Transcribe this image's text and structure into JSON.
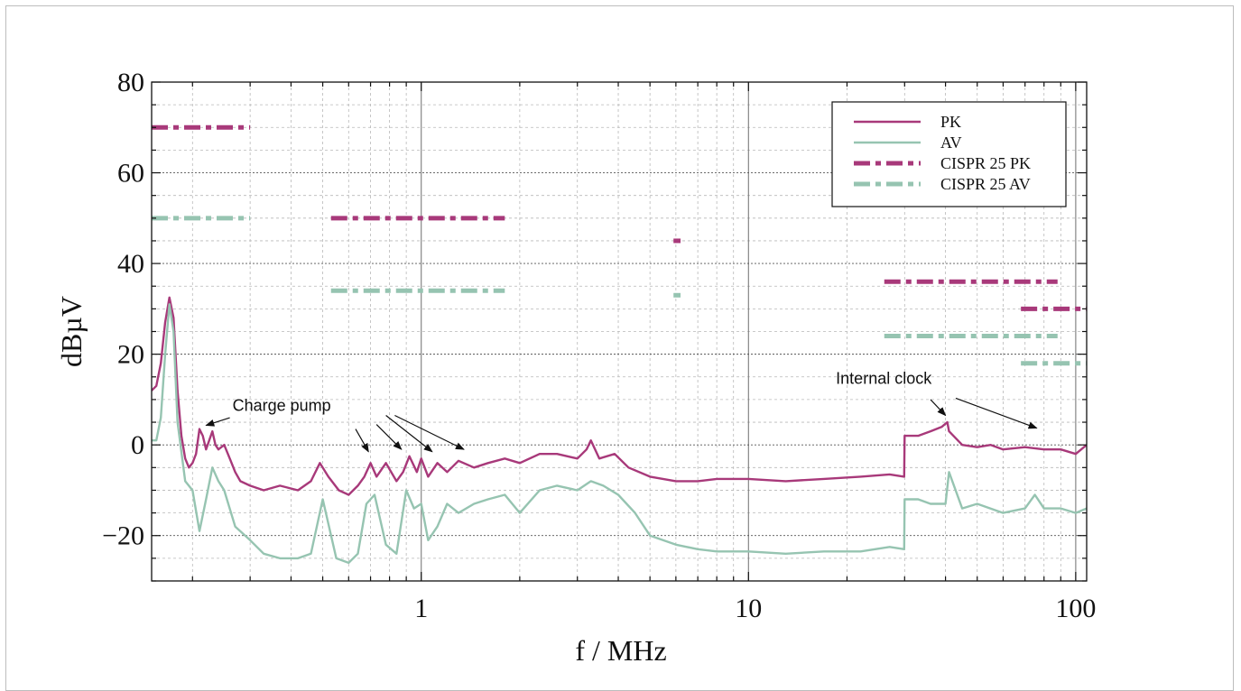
{
  "chart_data": {
    "type": "line",
    "xlabel": "f / MHz",
    "ylabel": "dBµV",
    "xscale": "log",
    "xlim": [
      0.15,
      108
    ],
    "ylim": [
      -30,
      80
    ],
    "x_ticks": [
      {
        "v": 1,
        "label": "1"
      },
      {
        "v": 10,
        "label": "10"
      },
      {
        "v": 100,
        "label": "100"
      }
    ],
    "y_ticks": [
      {
        "v": -20,
        "label": "−20"
      },
      {
        "v": 0,
        "label": "0"
      },
      {
        "v": 20,
        "label": "20"
      },
      {
        "v": 40,
        "label": "40"
      },
      {
        "v": 60,
        "label": "60"
      },
      {
        "v": 80,
        "label": "80"
      }
    ],
    "grid": true,
    "legend_position": "top-right",
    "colors": {
      "pk": "#a8397a",
      "av": "#96c4b1"
    },
    "series": [
      {
        "name": "PK",
        "key": "pk",
        "style": "solid",
        "x": [
          0.15,
          0.155,
          0.16,
          0.165,
          0.17,
          0.175,
          0.18,
          0.185,
          0.19,
          0.195,
          0.2,
          0.205,
          0.21,
          0.215,
          0.22,
          0.225,
          0.23,
          0.235,
          0.24,
          0.25,
          0.26,
          0.27,
          0.28,
          0.3,
          0.33,
          0.37,
          0.42,
          0.46,
          0.49,
          0.52,
          0.56,
          0.6,
          0.64,
          0.67,
          0.7,
          0.73,
          0.78,
          0.84,
          0.88,
          0.92,
          0.97,
          1.0,
          1.05,
          1.12,
          1.2,
          1.3,
          1.45,
          1.6,
          1.8,
          2.0,
          2.3,
          2.6,
          3.0,
          3.2,
          3.3,
          3.5,
          3.9,
          4.3,
          5.0,
          6.0,
          7.0,
          8.0,
          10.0,
          13.0,
          17.0,
          22.0,
          27.0,
          29.9,
          30.0,
          33.0,
          36.0,
          39.0,
          40.5,
          41.0,
          45.0,
          50.0,
          55.0,
          60.0,
          70.0,
          80.0,
          90.0,
          100.0,
          108.0
        ],
        "y": [
          12,
          13,
          18,
          27,
          32.5,
          28,
          12,
          2,
          -3,
          -5,
          -4,
          -2,
          3.5,
          2,
          -1,
          1,
          3,
          0,
          -1,
          0,
          -3,
          -6,
          -8,
          -9,
          -10,
          -9,
          -10,
          -8,
          -4,
          -7,
          -10,
          -11,
          -9,
          -7,
          -4,
          -7,
          -4,
          -8,
          -6,
          -2.5,
          -6,
          -3,
          -7,
          -4,
          -6,
          -3.5,
          -5,
          -4,
          -3,
          -4,
          -2,
          -2,
          -3,
          -1,
          1,
          -3,
          -2,
          -5,
          -7,
          -8,
          -8,
          -7.5,
          -7.5,
          -8,
          -7.5,
          -7,
          -6.5,
          -7,
          2,
          2,
          3,
          4,
          5,
          3,
          0,
          -0.5,
          0,
          -1,
          -0.5,
          -1,
          -1,
          -2,
          0
        ]
      },
      {
        "name": "AV",
        "key": "av",
        "style": "solid",
        "x": [
          0.15,
          0.155,
          0.16,
          0.165,
          0.17,
          0.175,
          0.18,
          0.19,
          0.2,
          0.21,
          0.22,
          0.23,
          0.24,
          0.25,
          0.27,
          0.3,
          0.33,
          0.37,
          0.42,
          0.46,
          0.5,
          0.55,
          0.6,
          0.64,
          0.68,
          0.72,
          0.78,
          0.84,
          0.9,
          0.95,
          1.0,
          1.05,
          1.12,
          1.2,
          1.3,
          1.45,
          1.6,
          1.8,
          2.0,
          2.3,
          2.6,
          3.0,
          3.3,
          3.6,
          4.0,
          4.5,
          5.0,
          6.0,
          7.0,
          8.0,
          10.0,
          13.0,
          17.0,
          22.0,
          27.0,
          29.9,
          30.0,
          33.0,
          36.0,
          40.0,
          41.0,
          45.0,
          50.0,
          60.0,
          70.0,
          75.0,
          80.0,
          90.0,
          100.0,
          108.0
        ],
        "y": [
          1,
          1,
          6,
          20,
          31,
          25,
          5,
          -8,
          -10,
          -19,
          -12,
          -5,
          -8,
          -10,
          -18,
          -21,
          -24,
          -25,
          -25,
          -24,
          -12,
          -25,
          -26,
          -24,
          -13,
          -11,
          -22,
          -24,
          -10,
          -14,
          -13,
          -21,
          -18,
          -13,
          -15,
          -13,
          -12,
          -11,
          -15,
          -10,
          -9,
          -10,
          -8,
          -9,
          -11,
          -15,
          -20,
          -22,
          -23,
          -23.5,
          -23.5,
          -24,
          -23.5,
          -23.5,
          -22.5,
          -23,
          -12,
          -12,
          -13,
          -13,
          -6,
          -14,
          -13,
          -15,
          -14,
          -11,
          -14,
          -14,
          -15,
          -14
        ]
      },
      {
        "name": "CISPR 25 PK",
        "key": "pk",
        "style": "dashdot",
        "segments": [
          {
            "x": [
              0.15,
              0.3
            ],
            "y": 70
          },
          {
            "x": [
              0.53,
              1.8
            ],
            "y": 50
          },
          {
            "x": [
              5.9,
              6.2
            ],
            "y": 45
          },
          {
            "x": [
              26,
              88
            ],
            "y": 36
          },
          {
            "x": [
              68,
              108
            ],
            "y": 30
          }
        ]
      },
      {
        "name": "CISPR 25 AV",
        "key": "av",
        "style": "dashdot",
        "segments": [
          {
            "x": [
              0.15,
              0.3
            ],
            "y": 50
          },
          {
            "x": [
              0.53,
              1.8
            ],
            "y": 34
          },
          {
            "x": [
              5.9,
              6.2
            ],
            "y": 33
          },
          {
            "x": [
              26,
              88
            ],
            "y": 24
          },
          {
            "x": [
              68,
              108
            ],
            "y": 18
          }
        ]
      }
    ],
    "annotations": [
      {
        "text": "Charge pump",
        "text_at": [
          0.265,
          7.5
        ],
        "arrows": [
          [
            0.26,
            6,
            0.22,
            4.3
          ],
          [
            0.63,
            3.5,
            0.69,
            -1.5
          ],
          [
            0.73,
            4.5,
            0.87,
            -1
          ],
          [
            0.78,
            6.5,
            1.08,
            -1.5
          ],
          [
            0.83,
            6.5,
            1.35,
            -1
          ]
        ]
      },
      {
        "text": "Internal clock",
        "text_at": [
          18.5,
          13.5
        ],
        "arrows": [
          [
            36,
            10,
            40,
            6.5
          ],
          [
            43,
            10.3,
            76,
            3.7
          ]
        ]
      }
    ]
  }
}
